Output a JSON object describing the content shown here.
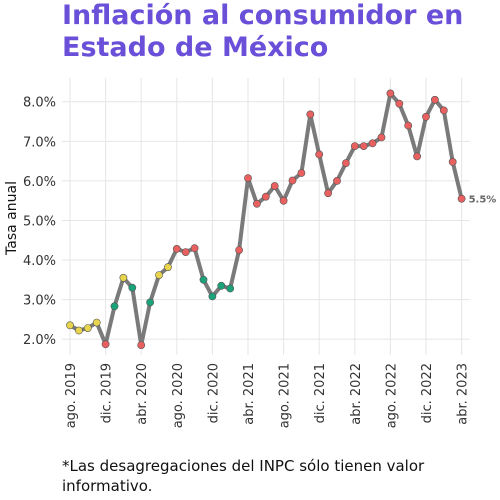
{
  "title": "Inflación al consumidor en Estado de México",
  "footnote": "*Las desagregaciones del INPC sólo tienen valor informativo.",
  "colors": {
    "title": "#6a4fd8",
    "line": "#7a7a7a",
    "low": "#e8d44d",
    "mid": "#1aa37a",
    "high": "#e8605f",
    "grid": "#e6e6e6"
  },
  "chart_data": {
    "type": "line",
    "title": "Inflación al consumidor en Estado de México",
    "xlabel": "",
    "ylabel": "Tasa anual",
    "ylim": [
      1.6,
      8.6
    ],
    "yticks": [
      2,
      3,
      4,
      5,
      6,
      7,
      8
    ],
    "ytick_labels": [
      "2.0%",
      "3.0%",
      "4.0%",
      "5.0%",
      "6.0%",
      "7.0%",
      "8.0%"
    ],
    "xticks": [
      {
        "label": "ago. 2019",
        "index": 0
      },
      {
        "label": "dic. 2019",
        "index": 4
      },
      {
        "label": "abr. 2020",
        "index": 8
      },
      {
        "label": "ago. 2020",
        "index": 12
      },
      {
        "label": "dic. 2020",
        "index": 16
      },
      {
        "label": "abr. 2021",
        "index": 20
      },
      {
        "label": "ago. 2021",
        "index": 24
      },
      {
        "label": "dic. 2021",
        "index": 28
      },
      {
        "label": "abr. 2022",
        "index": 32
      },
      {
        "label": "ago. 2022",
        "index": 36
      },
      {
        "label": "dic. 2022",
        "index": 40
      },
      {
        "label": "abr. 2023",
        "index": 44
      }
    ],
    "end_label": "5.5%",
    "grid": true,
    "legend": "none",
    "series": [
      {
        "x": [
          "2019-08",
          "2019-09",
          "2019-10",
          "2019-11",
          "2019-12",
          "2020-01",
          "2020-02",
          "2020-03",
          "2020-04",
          "2020-05",
          "2020-06",
          "2020-07",
          "2020-08",
          "2020-09",
          "2020-10",
          "2020-11",
          "2020-12",
          "2021-01",
          "2021-02",
          "2021-03",
          "2021-04",
          "2021-05",
          "2021-06",
          "2021-07",
          "2021-08",
          "2021-09",
          "2021-10",
          "2021-11",
          "2021-12",
          "2022-01",
          "2022-02",
          "2022-03",
          "2022-04",
          "2022-05",
          "2022-06",
          "2022-07",
          "2022-08",
          "2022-09",
          "2022-10",
          "2022-11",
          "2022-12",
          "2023-01",
          "2023-02",
          "2023-03",
          "2023-04"
        ],
        "values": [
          2.35,
          2.22,
          2.28,
          2.42,
          1.87,
          2.83,
          3.55,
          3.3,
          1.85,
          2.93,
          3.62,
          3.82,
          4.28,
          4.2,
          4.3,
          3.5,
          3.08,
          3.35,
          3.28,
          4.25,
          6.07,
          5.42,
          5.6,
          5.87,
          5.5,
          6.01,
          6.2,
          7.68,
          6.67,
          5.69,
          6.0,
          6.45,
          6.88,
          6.88,
          6.95,
          7.1,
          8.21,
          7.95,
          7.4,
          6.62,
          7.62,
          8.05,
          7.78,
          6.48,
          5.55
        ],
        "point_colors": [
          "low",
          "low",
          "low",
          "low",
          "high",
          "mid",
          "low",
          "mid",
          "high",
          "mid",
          "low",
          "low",
          "high",
          "high",
          "high",
          "mid",
          "mid",
          "mid",
          "mid",
          "high",
          "high",
          "high",
          "high",
          "high",
          "high",
          "high",
          "high",
          "high",
          "high",
          "high",
          "high",
          "high",
          "high",
          "high",
          "high",
          "high",
          "high",
          "high",
          "high",
          "high",
          "high",
          "high",
          "high",
          "high",
          "high"
        ]
      }
    ]
  }
}
